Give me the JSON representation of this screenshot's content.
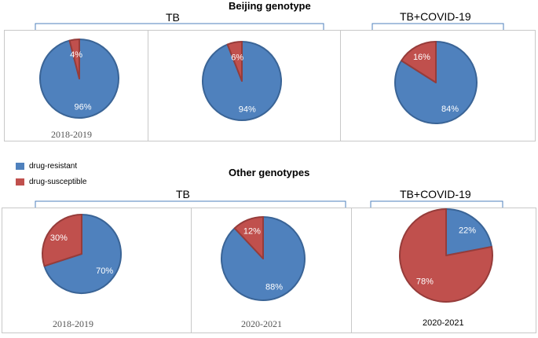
{
  "sections": {
    "beijing_title": "Beijing genotype",
    "other_title": "Other genotypes",
    "tb_label": "TB",
    "tbcovid_label": "TB+COVID-19"
  },
  "legend": {
    "resistant": "drug-resistant",
    "susceptible": "drug-susceptible"
  },
  "colors": {
    "resistant": "#4f81bd",
    "resistant_stroke": "#3a6496",
    "susceptible": "#c0504d",
    "susceptible_stroke": "#963c3a"
  },
  "panels": {
    "b1": {
      "year": "2018-2019"
    },
    "o1": {
      "year": "2018-2019"
    },
    "o2": {
      "year": "2020-2021"
    },
    "o3": {
      "year": "2020-2021"
    }
  },
  "chart_data": [
    {
      "type": "pie",
      "title": "Beijing genotype TB 2018-2019",
      "labels": [
        "drug-resistant",
        "drug-susceptible"
      ],
      "values": [
        96,
        4
      ],
      "value_labels": [
        "96%",
        "4%"
      ]
    },
    {
      "type": "pie",
      "title": "Beijing genotype TB",
      "labels": [
        "drug-resistant",
        "drug-susceptible"
      ],
      "values": [
        94,
        6
      ],
      "value_labels": [
        "94%",
        "6%"
      ]
    },
    {
      "type": "pie",
      "title": "Beijing genotype TB+COVID-19",
      "labels": [
        "drug-resistant",
        "drug-susceptible"
      ],
      "values": [
        84,
        16
      ],
      "value_labels": [
        "84%",
        "16%"
      ]
    },
    {
      "type": "pie",
      "title": "Other genotypes TB 2018-2019",
      "labels": [
        "drug-resistant",
        "drug-susceptible"
      ],
      "values": [
        70,
        30
      ],
      "value_labels": [
        "70%",
        "30%"
      ]
    },
    {
      "type": "pie",
      "title": "Other genotypes TB 2020-2021",
      "labels": [
        "drug-resistant",
        "drug-susceptible"
      ],
      "values": [
        88,
        12
      ],
      "value_labels": [
        "88%",
        "12%"
      ]
    },
    {
      "type": "pie",
      "title": "Other genotypes TB+COVID-19 2020-2021",
      "labels": [
        "drug-resistant",
        "drug-susceptible"
      ],
      "values": [
        22,
        78
      ],
      "value_labels": [
        "22%",
        "78%"
      ]
    }
  ]
}
